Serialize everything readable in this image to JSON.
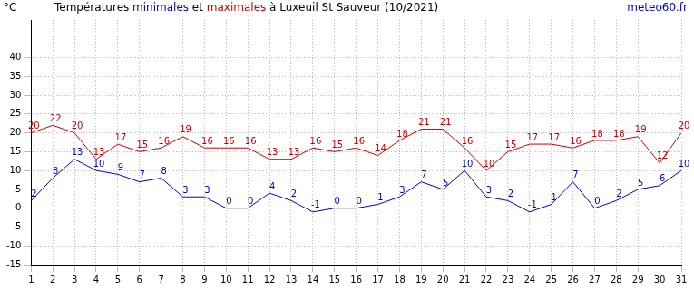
{
  "chart_data": {
    "type": "line",
    "title": "Températures minimales et maximales à Luxeuil St Sauveur (10/2021)",
    "source": "meteo60.fr",
    "y_label": "°C",
    "categories": [
      "1",
      "2",
      "3",
      "4",
      "5",
      "6",
      "7",
      "8",
      "9",
      "10",
      "11",
      "12",
      "13",
      "14",
      "15",
      "16",
      "17",
      "18",
      "19",
      "20",
      "21",
      "22",
      "23",
      "24",
      "25",
      "26",
      "27",
      "28",
      "29",
      "30",
      "31"
    ],
    "series": [
      {
        "name": "minimales",
        "color": "#0000cc",
        "values": [
          2,
          8,
          13,
          10,
          9,
          7,
          8,
          3,
          3,
          0,
          0,
          4,
          2,
          -1,
          0,
          0,
          1,
          3,
          7,
          5,
          10,
          3,
          2,
          -1,
          1,
          7,
          0,
          2,
          5,
          6,
          10
        ]
      },
      {
        "name": "maximales",
        "color": "#cc0000",
        "values": [
          20,
          22,
          20,
          13,
          17,
          15,
          16,
          19,
          16,
          16,
          16,
          13,
          13,
          16,
          15,
          16,
          14,
          18,
          21,
          21,
          16,
          10,
          15,
          17,
          17,
          16,
          18,
          18,
          19,
          12,
          20
        ]
      }
    ],
    "ylim": [
      -15,
      50
    ],
    "yticks": [
      -15,
      -10,
      -5,
      0,
      5,
      10,
      15,
      20,
      25,
      30,
      35,
      40
    ],
    "grid": true,
    "data_labels": true,
    "marker": "none"
  }
}
